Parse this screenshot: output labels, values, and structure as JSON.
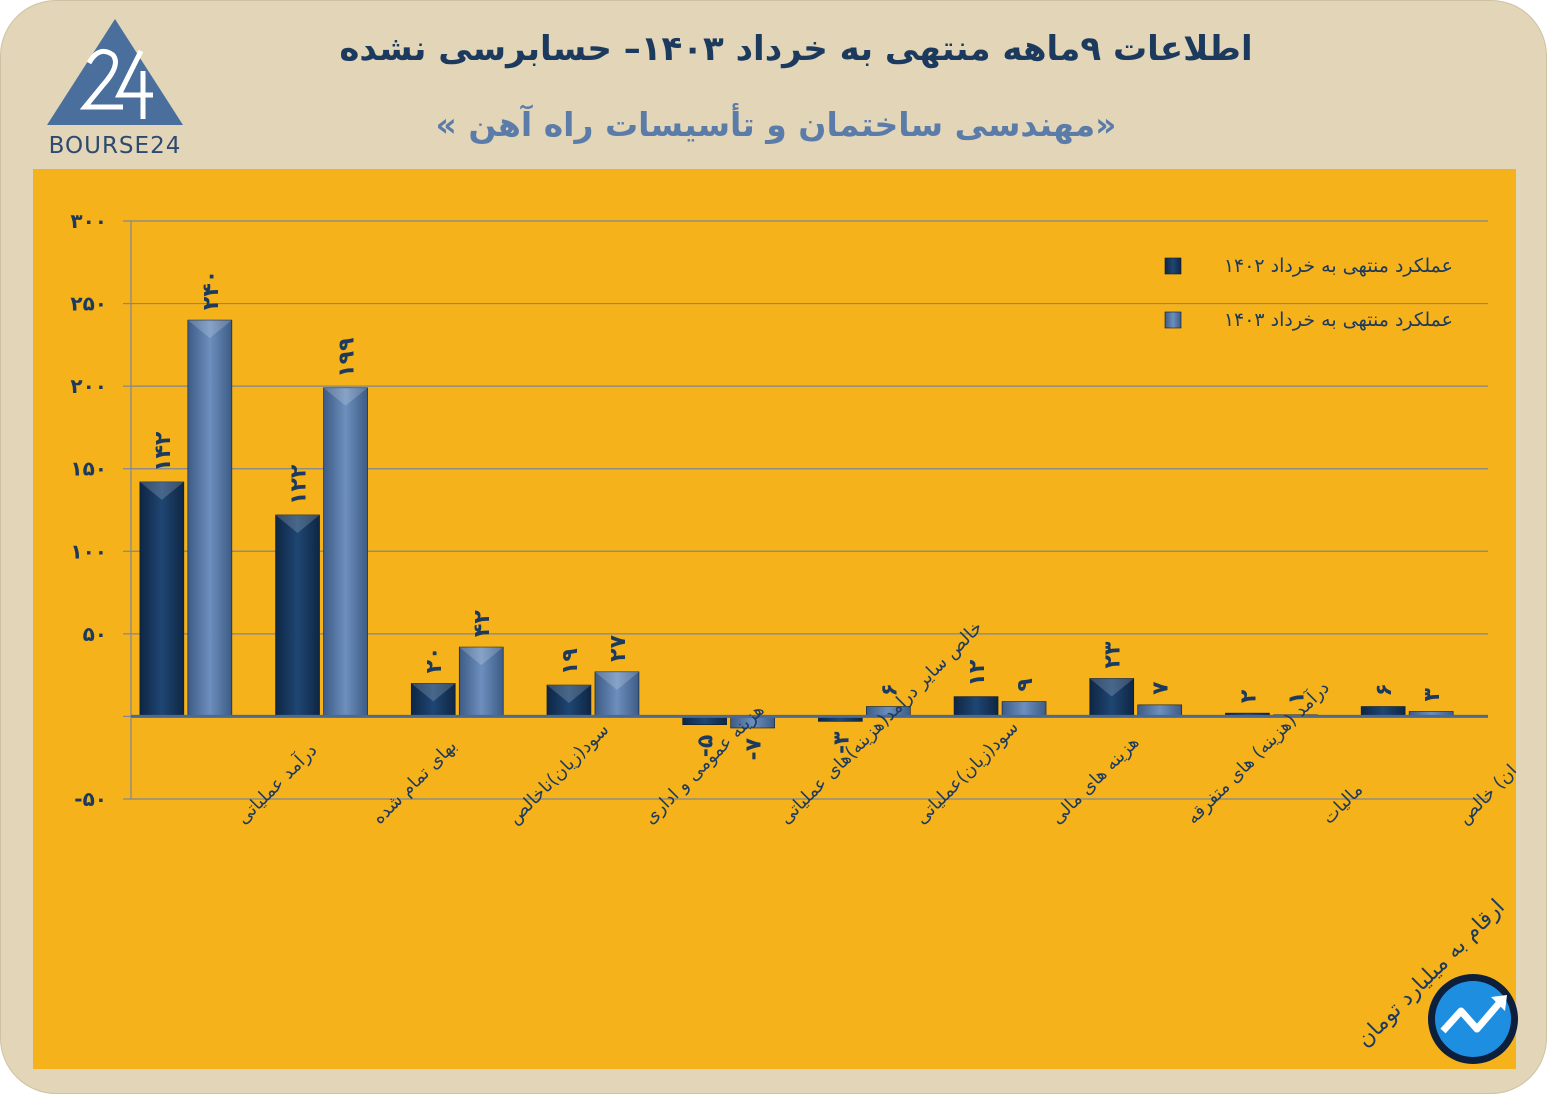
{
  "header": {
    "title": "اطلاعات ۹ماهه منتهی به خرداد ۱۴۰۳– حسابرسی نشده",
    "subtitle": "«مهندسی ساختمان و تأسیسات راه آهن »",
    "logo_text": "BOURSE24"
  },
  "units_note": "ارقام به میلیارد تومان",
  "colors": {
    "background": "#e2d5b8",
    "panel": "#f5b21b",
    "series_1402": "#17365d",
    "series_1403": "#4f6f9c",
    "gridline": "#7d8797",
    "baseline": "#4a6a95",
    "text": "#1c3a5e"
  },
  "chart_data": {
    "type": "bar",
    "categories": [
      "درآمد عملیاتی",
      "بهای تمام شده",
      "سود(زیان)ناخالص",
      "هزینه عمومی و اداری",
      "خالص سایر درامد(هزینه)های عملیاتی",
      "سود(زیان)عملیاتی",
      "هزینه های مالی",
      "درآمد (هزینه) های متفرقه",
      "مالیات",
      "سود(زیان) خالص"
    ],
    "series": [
      {
        "name": "عملکرد منتهی به خرداد ۱۴۰۲",
        "values": [
          142,
          122,
          20,
          19,
          -5,
          -3,
          12,
          23,
          2,
          6
        ],
        "labels": [
          "۱۴۲",
          "۱۲۲",
          "۲۰",
          "۱۹",
          "-۵",
          "-۳",
          "۱۲",
          "۲۳",
          "۲",
          "۶"
        ]
      },
      {
        "name": "عملکرد منتهی به خرداد ۱۴۰۳",
        "values": [
          240,
          199,
          42,
          27,
          -7,
          6,
          9,
          7,
          1,
          3
        ],
        "labels": [
          "۲۴۰",
          "۱۹۹",
          "۴۲",
          "۲۷",
          "-۷",
          "۶",
          "۹",
          "۷",
          "۱",
          "۳"
        ]
      }
    ],
    "ylim": [
      -50,
      300
    ],
    "yticks": [
      -50,
      0,
      50,
      100,
      150,
      200,
      250,
      300
    ],
    "ytick_labels": [
      "-۵۰",
      "",
      "۵۰",
      "۱۰۰",
      "۱۵۰",
      "۲۰۰",
      "۲۵۰",
      "۳۰۰"
    ],
    "grid": true,
    "legend_position": "top-right"
  }
}
